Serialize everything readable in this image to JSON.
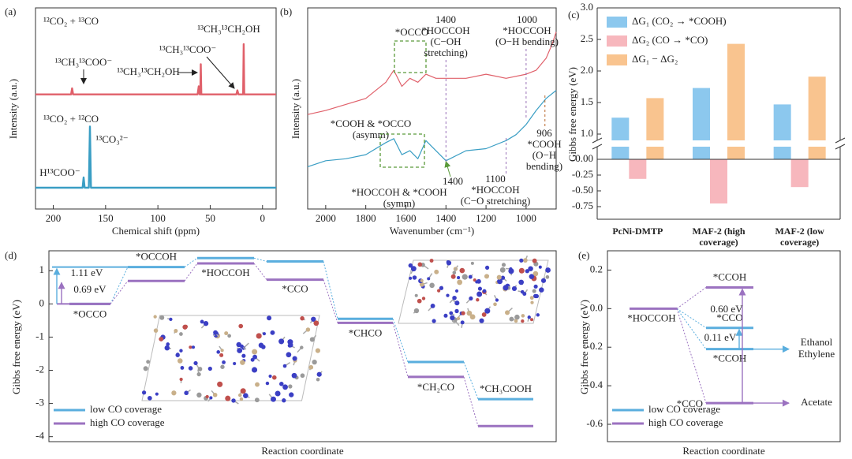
{
  "chart_data": [
    {
      "type": "spectrum",
      "label": "(a)",
      "x_label": "Chemical shift (ppm)",
      "y_label": "Intensity (a.u.)",
      "xlim": [
        217,
        -13
      ],
      "xticks": [
        200,
        150,
        100,
        50,
        0
      ],
      "ylim": [
        0,
        1
      ],
      "series": [
        {
          "name": "¹²CO₂ + ¹³CO",
          "color": "#e0606a",
          "x": [
            217,
            183,
            182,
            181,
            62,
            61,
            60,
            59.5,
            59,
            58.5,
            25,
            24,
            23,
            18.5,
            18,
            17.5,
            -13
          ],
          "values": [
            0.57,
            0.57,
            0.6,
            0.57,
            0.57,
            0.61,
            0.57,
            0.57,
            0.72,
            0.57,
            0.57,
            0.59,
            0.57,
            0.57,
            0.82,
            0.57,
            0.57
          ]
        },
        {
          "name": "¹³CO₂ + ¹²CO",
          "color": "#3a9ec4",
          "x": [
            217,
            172,
            171,
            170,
            166,
            165,
            164,
            -13
          ],
          "values": [
            0.106,
            0.106,
            0.157,
            0.106,
            0.106,
            0.41,
            0.106,
            0.106
          ]
        }
      ],
      "annotations": [
        {
          "text": "¹³CH₃¹³COO⁻",
          "color": "#222"
        },
        {
          "text": "¹³CH₃¹³COO⁻",
          "color": "#222"
        },
        {
          "text": "¹³CH₃¹³CH₂OH",
          "color": "#222"
        },
        {
          "text": "¹³CH₃¹³CH₂OH",
          "color": "#222"
        },
        {
          "text": "¹³CO₃²⁻",
          "color": "#222"
        },
        {
          "text": "H¹³COO⁻",
          "color": "#222"
        }
      ]
    },
    {
      "type": "spectrum",
      "label": "(b)",
      "x_label": "Wavenumber (cm⁻¹)",
      "y_label": "Intensity (a.u.)",
      "xlim": [
        2090,
        850
      ],
      "xticks": [
        2000,
        1800,
        1600,
        1400,
        1200,
        1000
      ],
      "ylim": [
        0,
        1
      ],
      "series": [
        {
          "color": "#e0606a",
          "x": [
            2090,
            2000,
            1900,
            1800,
            1700,
            1660,
            1620,
            1580,
            1540,
            1500,
            1450,
            1400,
            1300,
            1200,
            1100,
            1000,
            950,
            900,
            870,
            850
          ],
          "values": [
            0.47,
            0.49,
            0.52,
            0.55,
            0.63,
            0.69,
            0.61,
            0.65,
            0.63,
            0.67,
            0.65,
            0.65,
            0.65,
            0.67,
            0.65,
            0.67,
            0.69,
            0.75,
            0.82,
            0.88
          ]
        },
        {
          "color": "#3a9ec4",
          "x": [
            2090,
            2000,
            1900,
            1800,
            1700,
            1660,
            1620,
            1580,
            1540,
            1500,
            1450,
            1400,
            1300,
            1200,
            1100,
            1050,
            1000,
            950,
            900,
            850
          ],
          "values": [
            0.21,
            0.24,
            0.25,
            0.27,
            0.33,
            0.35,
            0.27,
            0.29,
            0.25,
            0.34,
            0.29,
            0.24,
            0.29,
            0.3,
            0.34,
            0.37,
            0.42,
            0.49,
            0.55,
            0.59
          ]
        }
      ],
      "annotations": [
        {
          "text": [
            "*OCCO"
          ],
          "color": "#5a9a3a"
        },
        {
          "x": 1400,
          "text": [
            "*HOCCOH",
            "(C−OH",
            "stretching)"
          ],
          "color": "#9a72b8"
        },
        {
          "x": 1000,
          "text": [
            "*HOCCOH",
            "(O−H bending)"
          ],
          "color": "#9a72b8"
        },
        {
          "text": [
            "*COOH & *OCCO",
            "(asymm)"
          ],
          "color": "#5a9a3a"
        },
        {
          "x": 1400,
          "text": [
            "*HOCCOH & *COOH",
            "(symm)"
          ],
          "color": "#5a9a3a"
        },
        {
          "x": 1100,
          "text": [
            "*HOCCOH",
            "(C−O stretching)"
          ],
          "color": "#9a72b8"
        },
        {
          "x": 906,
          "text": [
            "*COOH",
            "(O−H",
            "bending)"
          ],
          "color": "#b86a30"
        }
      ]
    },
    {
      "type": "bar",
      "label": "(c)",
      "y_label": "Gibbs free energy (eV)",
      "categories": [
        "PcNi-DMTP",
        "MAF-2 (high coverage)",
        "MAF-2 (low coverage)"
      ],
      "series": [
        {
          "name": "ΔG₁ (CO₂ → *COOH)",
          "color": "#8cc8ee",
          "values": [
            1.26,
            1.73,
            1.47
          ]
        },
        {
          "name": "ΔG₂ (CO → *CO)",
          "color": "#f7b7bd",
          "values": [
            -0.31,
            -0.7,
            -0.44
          ]
        },
        {
          "name": "ΔG₁ − ΔG₂",
          "color": "#f9c48f",
          "values": [
            1.57,
            2.43,
            1.91
          ]
        }
      ],
      "ylim": [
        -0.95,
        3.0
      ],
      "ybreak": [
        0.2,
        0.9
      ],
      "yticks": [
        -0.75,
        {
          "value": -0.5,
          "label": "-0.50"
        },
        -0.25,
        {
          "value": 0,
          "label": "0.00"
        },
        {
          "value": 1,
          "label": "1.0"
        },
        1.5,
        {
          "value": 2,
          "label": "2.0"
        },
        2.5,
        {
          "value": 3,
          "label": "3.0"
        }
      ],
      "legend": "upper left"
    },
    {
      "type": "energy_diagram",
      "label": "(d)",
      "x_label": "Reaction coordinate",
      "y_label": "Gibbs free energy (eV)",
      "ylim": [
        -4.15,
        1.6
      ],
      "yticks": [
        1,
        0,
        -1,
        -2,
        -3,
        -4
      ],
      "categories": [
        "*OCCO",
        "*OCCOH",
        "*HOCCOH",
        "*CCO",
        "*CHCO",
        "*CH₂CO",
        "*CH₃COOH"
      ],
      "series": [
        {
          "name": "low CO coverage",
          "color": "#5aaede",
          "values": [
            0,
            1.11,
            1.38,
            1.28,
            -0.45,
            -1.75,
            -2.87
          ],
          "gap_label": "1.11 eV"
        },
        {
          "name": "high CO coverage",
          "color": "#9b72c0",
          "values": [
            0,
            0.69,
            1.22,
            0.73,
            -0.57,
            -2.2,
            -3.68
          ],
          "gap_label": "0.69 eV"
        }
      ],
      "legend": "lower left"
    },
    {
      "type": "energy_branch",
      "label": "(e)",
      "x_label": "Reaction coordinate",
      "y_label": "Gibbs free energy (eV)",
      "ylim": [
        -0.69,
        0.3
      ],
      "yticks": [
        0.2,
        {
          "value": 0,
          "label": "0.0"
        },
        -0.2,
        -0.4,
        -0.6
      ],
      "start": {
        "label": "*HOCCOH",
        "value": 0
      },
      "series": [
        {
          "name": "low CO coverage",
          "color": "#5aaede",
          "levels": [
            {
              "label": "*CCO",
              "value": -0.1
            },
            {
              "label": "*CCOH",
              "value": -0.21
            }
          ],
          "gap_label": "0.11 eV",
          "products": [
            "Ethanol",
            "Ethylene"
          ]
        },
        {
          "name": "high CO coverage",
          "color": "#9b72c0",
          "levels": [
            {
              "label": "*CCOH",
              "value": 0.11
            },
            {
              "label": "*CCO",
              "value": -0.49
            }
          ],
          "gap_label": "0.60 eV",
          "products": [
            "Acetate"
          ]
        }
      ],
      "legend": "lower left"
    }
  ]
}
